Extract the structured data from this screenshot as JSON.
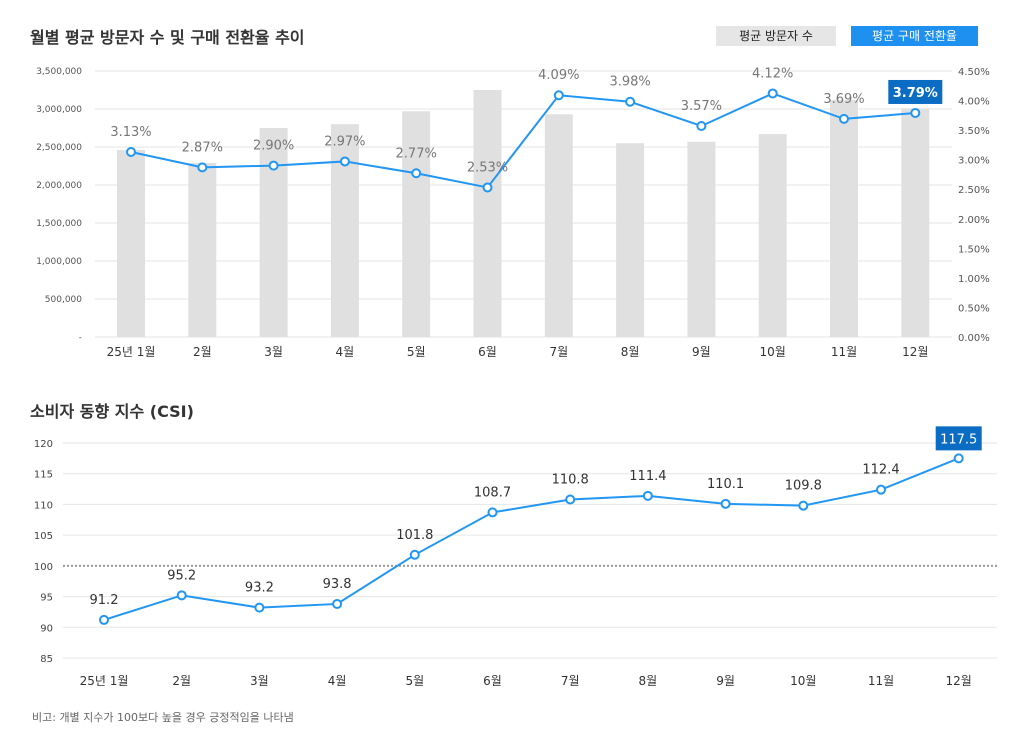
{
  "chart_data": [
    {
      "type": "bar+line",
      "title": "월별 평균 방문자 수 및 구매 전환율 추이",
      "categories": [
        "25년 1월",
        "2월",
        "3월",
        "4월",
        "5월",
        "6월",
        "7월",
        "8월",
        "9월",
        "10월",
        "11월",
        "12월"
      ],
      "series": [
        {
          "name": "평균 방문자 수",
          "type": "bar",
          "axis": "left",
          "color": "#e0e0e0",
          "values": [
            2460000,
            2290000,
            2750000,
            2800000,
            2970000,
            3250000,
            2930000,
            2550000,
            2570000,
            2670000,
            3120000,
            3010000
          ]
        },
        {
          "name": "평균 구매 전환율",
          "type": "line",
          "axis": "right",
          "color": "#2196f3",
          "values": [
            3.13,
            2.87,
            2.9,
            2.97,
            2.77,
            2.53,
            4.09,
            3.98,
            3.57,
            4.12,
            3.69,
            3.79
          ],
          "labels": [
            "3.13%",
            "2.87%",
            "2.90%",
            "2.97%",
            "2.77%",
            "2.53%",
            "4.09%",
            "3.98%",
            "3.57%",
            "4.12%",
            "3.69%",
            "3.79%"
          ]
        }
      ],
      "left_axis": {
        "ylim": [
          0,
          3500000
        ],
        "ticks": [
          "-",
          "500,000",
          "1,000,000",
          "1,500,000",
          "2,000,000",
          "2,500,000",
          "3,000,000",
          "3,500,000"
        ]
      },
      "right_axis": {
        "ylim": [
          0,
          4.5
        ],
        "ticks": [
          "0.00%",
          "0.50%",
          "1.00%",
          "1.50%",
          "2.00%",
          "2.50%",
          "3.00%",
          "3.50%",
          "4.00%",
          "4.50%"
        ]
      },
      "highlight_index": 11,
      "highlight_color": "#0b6cc4",
      "grid": true,
      "legend_position": "top-right"
    },
    {
      "type": "line",
      "title": "소비자 동향 지수 (CSI)",
      "categories": [
        "25년 1월",
        "2월",
        "3월",
        "4월",
        "5월",
        "6월",
        "7월",
        "8월",
        "9월",
        "10월",
        "11월",
        "12월"
      ],
      "series": [
        {
          "color": "#2196f3",
          "values": [
            91.2,
            95.2,
            93.2,
            93.8,
            101.8,
            108.7,
            110.8,
            111.4,
            110.1,
            109.8,
            112.4,
            117.5
          ]
        }
      ],
      "ylim": [
        85,
        120
      ],
      "yticks": [
        "85",
        "90",
        "95",
        "100",
        "105",
        "110",
        "115",
        "120"
      ],
      "reference_line": 100,
      "highlight_index": 11,
      "highlight_color": "#0b6cc4",
      "grid": true
    }
  ],
  "note": "비고: 개별 지수가 100보다 높을 경우 긍정적임을 나타냄"
}
